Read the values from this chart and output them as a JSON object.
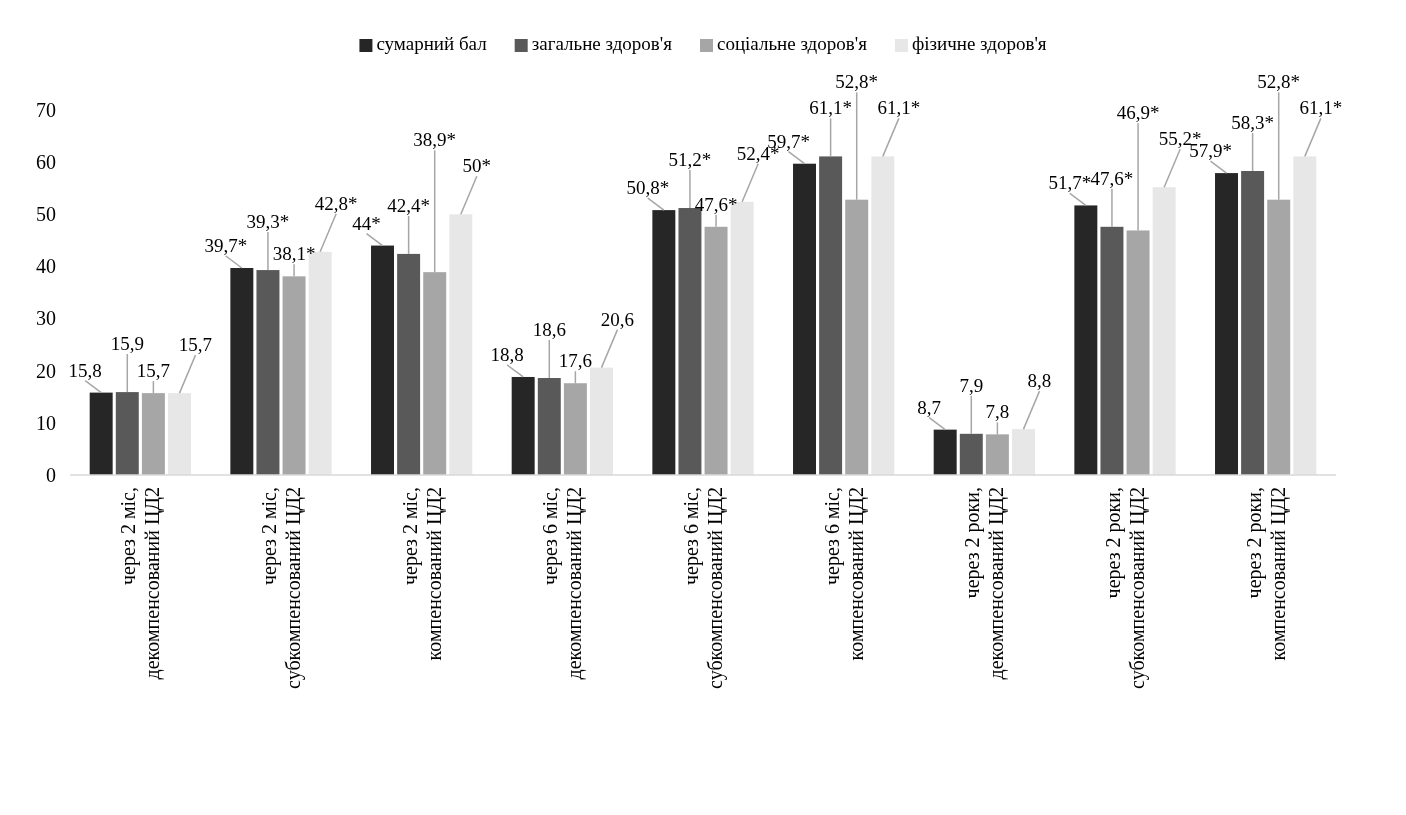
{
  "chart_data": {
    "type": "bar",
    "legend": "top",
    "categories": [
      "через 2 міс, декомпенсований ЦД2",
      "через 2 міс, субкомпенсований ЦД2",
      "через 2 міс, компенсований ЦД2",
      "через 6 міс, декомпенсований ЦД2",
      "через 6 міс, субкомпенсований ЦД2",
      "через 6 міс, компенсований ЦД2",
      "через 2 роки, декомпенсований ЦД2",
      "через 2 роки, субкомпенсований ЦД2",
      "через 2 роки, компенсований ЦД2"
    ],
    "ylim": [
      0,
      70
    ],
    "yticks": [
      0,
      10,
      20,
      30,
      40,
      50,
      60,
      70
    ],
    "series": [
      {
        "name": "сумарний бал",
        "color": "#262626",
        "values": [
          15.8,
          39.7,
          44,
          18.8,
          50.8,
          59.7,
          8.7,
          51.7,
          57.9
        ],
        "value_labels": [
          "15,8",
          "39,7*",
          "44*",
          "18,8",
          "50,8*",
          "59,7*",
          "8,7",
          "51,7*",
          "57,9*"
        ]
      },
      {
        "name": "загальне здоров'я",
        "color": "#595959",
        "values": [
          15.9,
          39.3,
          42.4,
          18.6,
          51.2,
          61.1,
          7.9,
          47.6,
          58.3
        ],
        "value_labels": [
          "15,9",
          "39,3*",
          "42,4*",
          "18,6",
          "51,2*",
          "61,1*",
          "7,9",
          "47,6*",
          "58,3*"
        ]
      },
      {
        "name": "соціальне здоров'я",
        "color": "#a6a6a6",
        "values": [
          15.7,
          38.1,
          38.9,
          17.6,
          47.6,
          52.8,
          7.8,
          46.9,
          52.8
        ],
        "value_labels": [
          "15,7",
          "38,1*",
          "38,9*",
          "17,6",
          "47,6*",
          "52,8*",
          "7,8",
          "46,9*",
          "52,8*"
        ]
      },
      {
        "name": "фізичне здоров'я",
        "color": "#e7e7e7",
        "values": [
          15.7,
          42.8,
          50,
          20.6,
          52.4,
          61.1,
          8.8,
          55.2,
          61.1
        ],
        "value_labels": [
          "15,7",
          "42,8*",
          "50*",
          "20,6",
          "52,4*",
          "61,1*",
          "8,8",
          "55,2*",
          "61,1*"
        ]
      }
    ]
  }
}
